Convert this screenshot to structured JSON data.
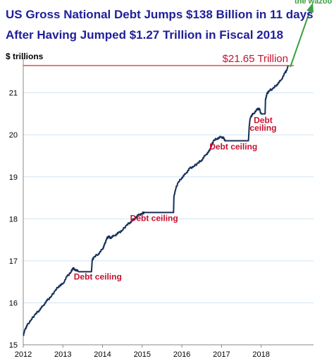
{
  "title_line1": "US Gross National Debt Jumps $138 Billion in 11 days",
  "title_line2": "After Having Jumped $1.27 Trillion in Fiscal 2018",
  "y_unit_label": "$ trillions",
  "callout_text": "the wazoo",
  "colors": {
    "title": "#1f1f9a",
    "line": "#16305a",
    "reference": "#d03030",
    "annotation": "#c8102e",
    "callout": "#3aa040",
    "grid": "#cfe3f2",
    "axis": "#888888"
  },
  "chart_data": {
    "type": "line",
    "x_ticks": [
      "2012",
      "2013",
      "2014",
      "2015",
      "2016",
      "2017",
      "2018"
    ],
    "y_ticks": [
      "15",
      "16",
      "17",
      "18",
      "19",
      "20",
      "21"
    ],
    "xlim": [
      2012.0,
      2018.7
    ],
    "ylim": [
      15,
      21.7
    ],
    "grid": "horizontal",
    "reference_line": {
      "value": 21.65,
      "label": "$21.65 Trillion"
    },
    "series": [
      {
        "points": [
          [
            2012.0,
            15.22
          ],
          [
            2012.05,
            15.38
          ],
          [
            2012.1,
            15.46
          ],
          [
            2012.2,
            15.6
          ],
          [
            2012.3,
            15.72
          ],
          [
            2012.4,
            15.82
          ],
          [
            2012.5,
            15.93
          ],
          [
            2012.6,
            16.05
          ],
          [
            2012.7,
            16.15
          ],
          [
            2012.8,
            16.28
          ],
          [
            2012.9,
            16.4
          ],
          [
            2013.0,
            16.45
          ],
          [
            2013.1,
            16.62
          ],
          [
            2013.2,
            16.73
          ],
          [
            2013.25,
            16.82
          ],
          [
            2013.3,
            16.8
          ],
          [
            2013.4,
            16.74
          ],
          [
            2013.72,
            16.74
          ],
          [
            2013.74,
            17.02
          ],
          [
            2013.78,
            17.08
          ],
          [
            2013.9,
            17.17
          ],
          [
            2014.0,
            17.28
          ],
          [
            2014.05,
            17.38
          ],
          [
            2014.1,
            17.52
          ],
          [
            2014.15,
            17.58
          ],
          [
            2014.2,
            17.55
          ],
          [
            2014.3,
            17.6
          ],
          [
            2014.4,
            17.66
          ],
          [
            2014.5,
            17.73
          ],
          [
            2014.6,
            17.84
          ],
          [
            2014.7,
            17.92
          ],
          [
            2014.8,
            18.0
          ],
          [
            2014.9,
            18.08
          ],
          [
            2015.0,
            18.13
          ],
          [
            2015.05,
            18.15
          ],
          [
            2015.1,
            18.15
          ],
          [
            2015.79,
            18.15
          ],
          [
            2015.8,
            18.52
          ],
          [
            2015.84,
            18.7
          ],
          [
            2015.9,
            18.85
          ],
          [
            2016.0,
            18.98
          ],
          [
            2016.1,
            19.08
          ],
          [
            2016.2,
            19.2
          ],
          [
            2016.3,
            19.25
          ],
          [
            2016.4,
            19.32
          ],
          [
            2016.5,
            19.4
          ],
          [
            2016.6,
            19.52
          ],
          [
            2016.7,
            19.62
          ],
          [
            2016.75,
            19.75
          ],
          [
            2016.8,
            19.86
          ],
          [
            2016.9,
            19.92
          ],
          [
            2017.0,
            19.95
          ],
          [
            2017.05,
            19.92
          ],
          [
            2017.1,
            19.86
          ],
          [
            2017.5,
            19.86
          ],
          [
            2017.55,
            19.86
          ],
          [
            2017.6,
            19.86
          ],
          [
            2017.68,
            19.86
          ],
          [
            2017.7,
            20.2
          ],
          [
            2017.72,
            20.38
          ],
          [
            2017.75,
            20.45
          ],
          [
            2017.8,
            20.5
          ],
          [
            2017.9,
            20.6
          ],
          [
            2017.95,
            20.63
          ],
          [
            2018.0,
            20.5
          ],
          [
            2018.1,
            20.5
          ],
          [
            2018.11,
            20.85
          ],
          [
            2018.15,
            20.98
          ],
          [
            2018.2,
            21.05
          ],
          [
            2018.3,
            21.1
          ],
          [
            2018.4,
            21.2
          ],
          [
            2018.5,
            21.3
          ],
          [
            2018.6,
            21.47
          ],
          [
            2018.65,
            21.55
          ],
          [
            2018.68,
            21.65
          ]
        ]
      }
    ],
    "annotations": [
      {
        "text": "Debt ceiling",
        "x": 2013.88,
        "y": 16.55
      },
      {
        "text": "Debt ceiling",
        "x": 2015.3,
        "y": 17.95
      },
      {
        "text": "Debt ceiling",
        "x": 2017.3,
        "y": 19.65
      },
      {
        "text": "Debt",
        "x": 2018.05,
        "y": 20.28
      },
      {
        "text": "ceiling",
        "x": 2018.05,
        "y": 20.1
      }
    ]
  }
}
